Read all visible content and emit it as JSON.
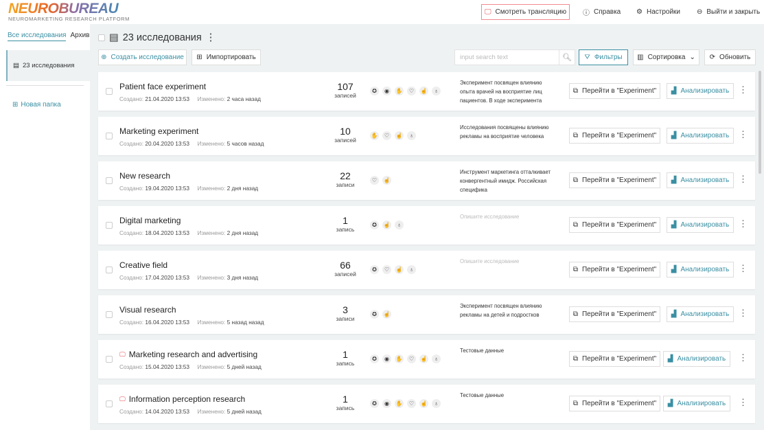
{
  "logo": {
    "name": "NEUROBUREAU",
    "tagline": "NEUROMARKETING RESEARCH PLATFORM"
  },
  "header": {
    "watch": "Смотреть трансляцию",
    "help": "Справка",
    "settings": "Настройки",
    "logout": "Выйти и закрыть"
  },
  "sidebar": {
    "tab_all": "Все исследования",
    "tab_archive": "Архив",
    "folder": "23 исследования",
    "new_folder": "Новая папка"
  },
  "main": {
    "title": "23 исследования",
    "create": "Создать исследование",
    "import": "Импортировать",
    "search_placeholder": "input search text",
    "filters": "Фильтры",
    "sort": "Сортировка",
    "refresh": "Обновить"
  },
  "labels": {
    "created": "Создано:",
    "modified": "Изменено:",
    "go": "Перейти в \"Experiment\"",
    "analyze": "Анализировать"
  },
  "rows": [
    {
      "name": "Patient face experiment",
      "created": "21.04.2020  13:53",
      "modified": "2 часа назад",
      "count": "107",
      "unit": "записей",
      "icons": [
        "brain",
        "eye",
        "hand",
        "heart-pulse",
        "pointer",
        "gsr"
      ],
      "desc": "Эксперимент посвящен влиянию опыта врачей на восприятие лиц пациентов. В ходе эксперимента",
      "live": false
    },
    {
      "name": "Marketing experiment",
      "created": "20.04.2020  13:53",
      "modified": "5 часов назад",
      "count": "10",
      "unit": "записей",
      "icons": [
        "hand",
        "heart-pulse",
        "pointer",
        "gsr"
      ],
      "desc": "Исследования посвящены влиянию рекламы на восприятие человека",
      "live": false
    },
    {
      "name": "New research",
      "created": "19.04.2020  13:53",
      "modified": "2 дня назад",
      "count": "22",
      "unit": "записи",
      "icons": [
        "heart-pulse",
        "pointer"
      ],
      "desc": "Инструмент маркетинга отталкивает конвергентный имидж. Российская специфика",
      "live": false
    },
    {
      "name": "Digital marketing",
      "created": "18.04.2020  13:53",
      "modified": "2 дня назад",
      "count": "1",
      "unit": "запись",
      "icons": [
        "brain",
        "pointer",
        "gsr"
      ],
      "desc": "Опишите исследование",
      "placeholder": true,
      "live": false
    },
    {
      "name": "Creative field",
      "created": "17.04.2020  13:53",
      "modified": "3 дня назад",
      "count": "66",
      "unit": "записей",
      "icons": [
        "brain",
        "heart-pulse",
        "pointer",
        "gsr"
      ],
      "desc": "Опишите исследование",
      "placeholder": true,
      "live": false
    },
    {
      "name": "Visual research",
      "created": "16.04.2020  13:53",
      "modified": "5 назад назад",
      "count": "3",
      "unit": "записи",
      "icons": [
        "brain",
        "pointer"
      ],
      "desc": "Эксперимент посвящен влиянию рекламы на детей и подростков",
      "live": false
    },
    {
      "name": "Marketing research and advertising",
      "created": "15.04.2020  13:53",
      "modified": "5 дней назад",
      "count": "1",
      "unit": "запись",
      "icons": [
        "brain",
        "eye",
        "hand",
        "heart-pulse",
        "pointer",
        "gsr"
      ],
      "desc": "Тестовые данные",
      "live": true
    },
    {
      "name": "Information perception research",
      "created": "14.04.2020  13:53",
      "modified": "5 дней назад",
      "count": "1",
      "unit": "запись",
      "icons": [
        "brain",
        "eye",
        "hand",
        "heart-pulse",
        "pointer",
        "gsr"
      ],
      "desc": "Тестовые данные",
      "live": true
    }
  ]
}
